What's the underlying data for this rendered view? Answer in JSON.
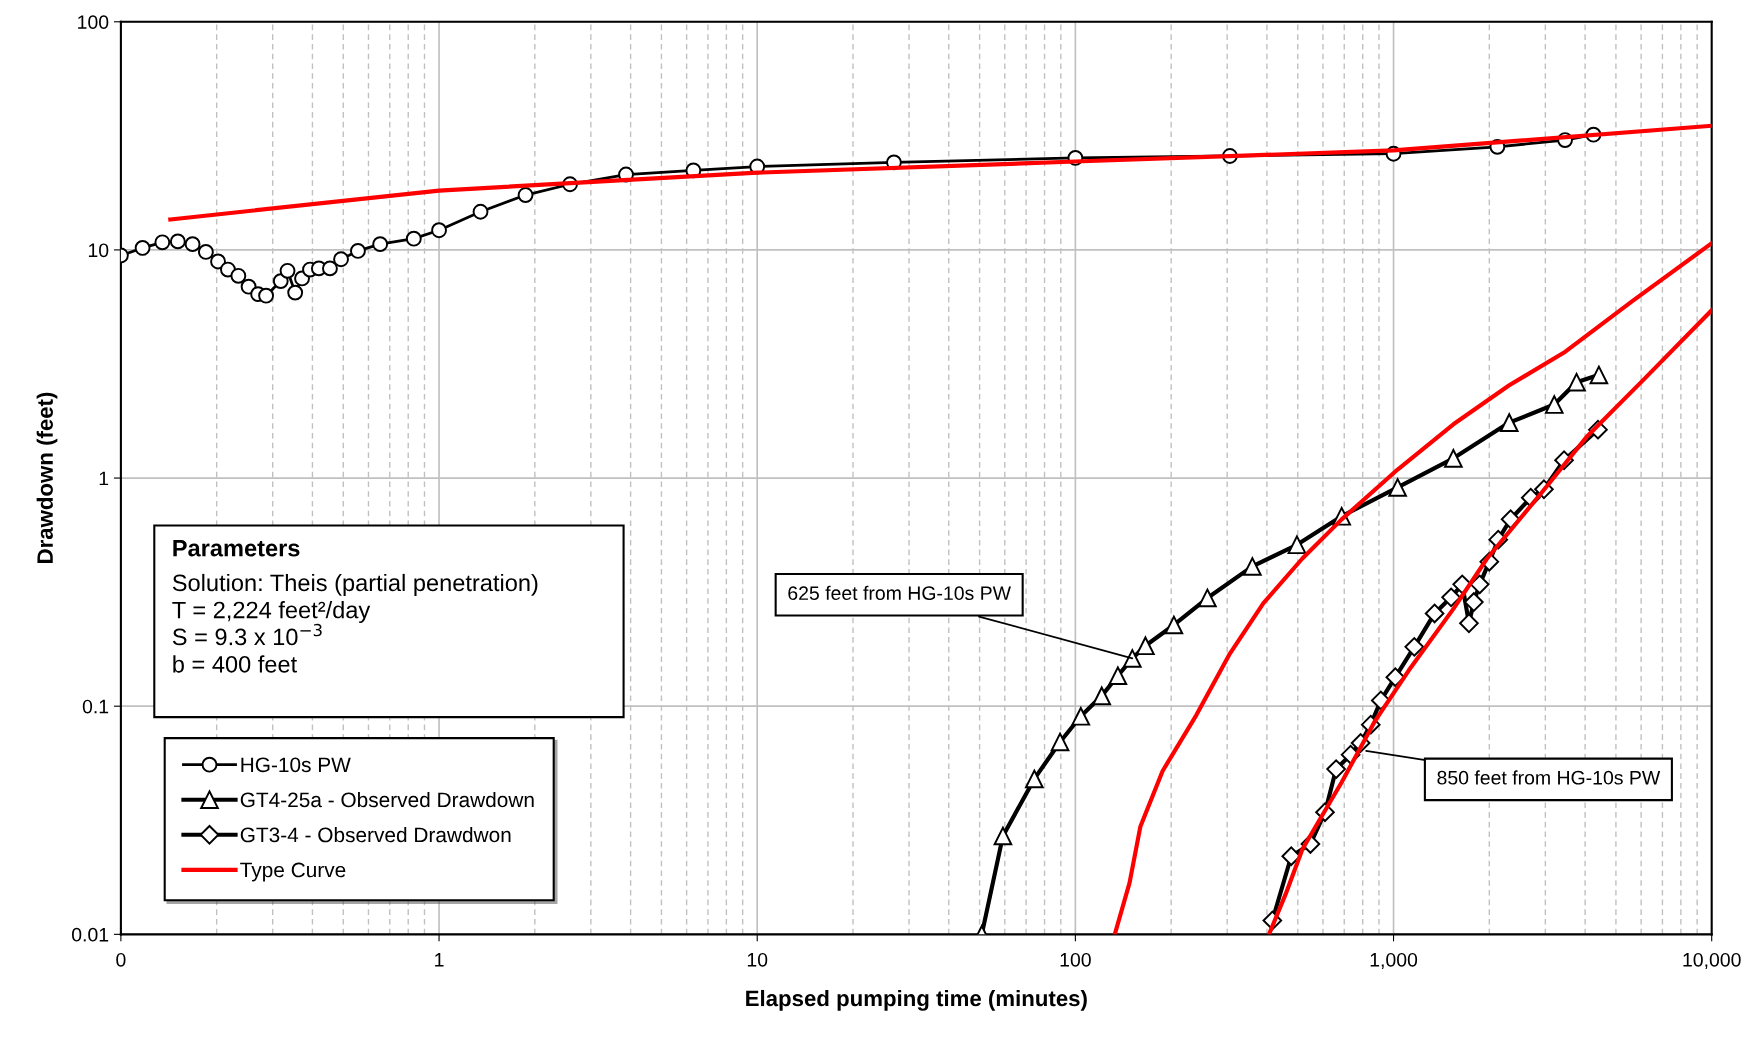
{
  "chart_data": {
    "type": "line",
    "xlabel": "Elapsed pumping time (minutes)",
    "ylabel": "Drawdown (feet)",
    "log": "xy",
    "xlim": [
      0.1,
      10000
    ],
    "ylim": [
      0.01,
      100
    ],
    "xticks": [
      {
        "value": 0.1,
        "label": "0"
      },
      1,
      10,
      100,
      {
        "value": 1000,
        "label": "1,000"
      },
      {
        "value": 10000,
        "label": "10,000"
      }
    ],
    "yticks": [
      0.01,
      0.1,
      1,
      10,
      100
    ],
    "grid": true,
    "legend": "bottom left",
    "series": [
      {
        "name": "HG-10s PW",
        "color": "#000000",
        "marker": "circle",
        "x": [
          0.1,
          0.117,
          0.135,
          0.151,
          0.168,
          0.185,
          0.202,
          0.217,
          0.234,
          0.252,
          0.27,
          0.286,
          0.318,
          0.334,
          0.353,
          0.371,
          0.393,
          0.419,
          0.454,
          0.492,
          0.556,
          0.653,
          0.833,
          1.0,
          1.35,
          1.87,
          2.58,
          3.87,
          6.3,
          10,
          26.9,
          100,
          306,
          1000,
          2120,
          3460,
          4250
        ],
        "values": [
          9.45,
          10.2,
          10.8,
          10.9,
          10.6,
          9.8,
          8.9,
          8.2,
          7.7,
          6.9,
          6.4,
          6.3,
          7.3,
          8.1,
          6.5,
          7.5,
          8.2,
          8.3,
          8.3,
          9.1,
          9.9,
          10.6,
          11.2,
          12.2,
          14.7,
          17.4,
          19.4,
          21.4,
          22.3,
          23.2,
          24.2,
          25.3,
          25.8,
          26.4,
          28.3,
          30.3,
          32.0
        ]
      },
      {
        "name": "GT4-25a - Observed Drawdown",
        "color": "#000000",
        "marker": "triangle",
        "x": [
          50.8,
          59.2,
          74.3,
          89.5,
          104,
          121,
          136,
          151,
          166,
          204,
          260,
          360,
          497,
          687,
          1030,
          1542,
          2310,
          3200,
          3760,
          4420
        ],
        "values": [
          0.01,
          0.027,
          0.048,
          0.0697,
          0.0903,
          0.111,
          0.136,
          0.162,
          0.184,
          0.227,
          0.298,
          0.41,
          0.51,
          0.68,
          0.91,
          1.22,
          1.75,
          2.1,
          2.63,
          2.83
        ]
      },
      {
        "name": "GT3-4 - Observed Drawdwon",
        "color": "#000000",
        "marker": "diamond",
        "x": [
          416,
          477,
          548,
          609,
          660,
          733,
          788,
          848,
          912,
          1013,
          1162,
          1346,
          1517,
          1644,
          1726,
          1788,
          1865,
          2000,
          2133,
          2333,
          2700,
          2970,
          3435,
          4390
        ],
        "values": [
          0.0115,
          0.022,
          0.0249,
          0.0343,
          0.053,
          0.0613,
          0.069,
          0.083,
          0.106,
          0.134,
          0.182,
          0.255,
          0.3,
          0.342,
          0.231,
          0.286,
          0.342,
          0.43,
          0.537,
          0.66,
          0.82,
          0.893,
          1.197,
          1.63
        ]
      },
      {
        "name": "Type Curve",
        "color": "#ff0000",
        "marker": "none",
        "x": [
          0.143,
          1,
          10,
          100,
          1000,
          10000
        ],
        "values": [
          13.6,
          18.2,
          21.8,
          24.4,
          27.3,
          35.0
        ]
      },
      {
        "color": "#ff0000",
        "marker": "none",
        "x": [
          133,
          148,
          160,
          188,
          240,
          306,
          390,
          517,
          687,
          1030,
          1542,
          2310,
          3467,
          5630,
          10000
        ],
        "values": [
          0.01,
          0.0168,
          0.0296,
          0.052,
          0.0914,
          0.17,
          0.283,
          0.444,
          0.659,
          1.09,
          1.72,
          2.55,
          3.58,
          5.96,
          10.7
        ]
      },
      {
        "color": "#ff0000",
        "marker": "none",
        "x": [
          406,
          458,
          517,
          687,
          875,
          1117,
          1542,
          1968,
          2940,
          4070,
          6110,
          10000
        ],
        "values": [
          0.01,
          0.015,
          0.0236,
          0.0464,
          0.0863,
          0.1436,
          0.267,
          0.444,
          0.873,
          1.53,
          2.7,
          5.44
        ]
      }
    ],
    "annotations": [
      {
        "text": "625 feet from HG-10s PW",
        "x": 151,
        "y": 0.162
      },
      {
        "text": "850 feet from HG-10s PW",
        "x": 820,
        "y": 0.0637
      },
      "Parameters\nSolution: Theis (partial penetration)\nT = 2,224 feet²/day\nS = 9.3 x 10$^{−3}$\nb = 400 feet"
    ]
  }
}
